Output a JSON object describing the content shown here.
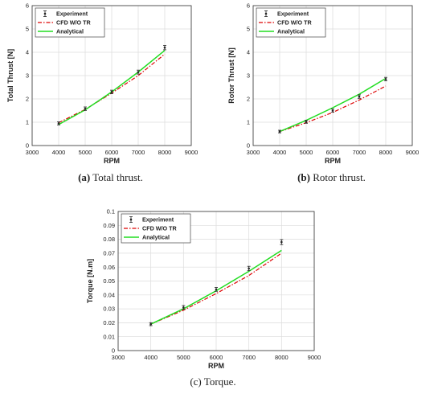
{
  "colors": {
    "experiment": "#222222",
    "cfd": "#dd0000",
    "analytical": "#22dd22",
    "grid": "#dcdcdc"
  },
  "chart_data": [
    {
      "type": "line",
      "caption_tag": "(a)",
      "caption_text": " Total thrust.",
      "xlabel": "RPM",
      "ylabel": "Total Thrust [N]",
      "xlim": [
        3000,
        9000
      ],
      "ylim": [
        0,
        6
      ],
      "xticks": [
        "3000",
        "4000",
        "5000",
        "6000",
        "7000",
        "8000",
        "9000"
      ],
      "yticks": [
        "0",
        "1",
        "2",
        "3",
        "4",
        "5",
        "6"
      ],
      "grid": true,
      "legend": "top-left",
      "series": [
        {
          "name": "Experiment",
          "style": "errorbar",
          "x": [
            4000,
            5000,
            6000,
            7000,
            8000
          ],
          "values": [
            0.95,
            1.58,
            2.3,
            3.15,
            4.2
          ],
          "err": [
            0.03,
            0.04,
            0.04,
            0.05,
            0.06
          ]
        },
        {
          "name": "CFD W/O TR",
          "style": "dashdot",
          "x": [
            4000,
            5000,
            6000,
            7000,
            8000
          ],
          "values": [
            0.98,
            1.55,
            2.25,
            3.0,
            3.92
          ]
        },
        {
          "name": "Analytical",
          "style": "solid",
          "x": [
            4000,
            5000,
            6000,
            7000,
            8000
          ],
          "values": [
            0.9,
            1.53,
            2.3,
            3.15,
            4.08
          ]
        }
      ]
    },
    {
      "type": "line",
      "caption_tag": "(b)",
      "caption_text": " Rotor thrust.",
      "xlabel": "RPM",
      "ylabel": "Rotor Thrust [N]",
      "xlim": [
        3000,
        9000
      ],
      "ylim": [
        0,
        6
      ],
      "xticks": [
        "3000",
        "4000",
        "5000",
        "6000",
        "7000",
        "8000",
        "9000"
      ],
      "yticks": [
        "0",
        "1",
        "2",
        "3",
        "4",
        "5",
        "6"
      ],
      "grid": true,
      "legend": "top-left",
      "series": [
        {
          "name": "Experiment",
          "style": "errorbar",
          "x": [
            4000,
            5000,
            6000,
            7000,
            8000
          ],
          "values": [
            0.6,
            1.02,
            1.5,
            2.1,
            2.85
          ],
          "err": [
            0.02,
            0.03,
            0.03,
            0.04,
            0.04
          ]
        },
        {
          "name": "CFD W/O TR",
          "style": "dashdot",
          "x": [
            4000,
            5000,
            6000,
            7000,
            8000
          ],
          "values": [
            0.6,
            0.98,
            1.42,
            1.95,
            2.55
          ]
        },
        {
          "name": "Analytical",
          "style": "solid",
          "x": [
            4000,
            5000,
            6000,
            7000,
            8000
          ],
          "values": [
            0.6,
            1.08,
            1.62,
            2.2,
            2.88
          ]
        }
      ]
    },
    {
      "type": "line",
      "caption_tag": "(c)",
      "caption_text": " Torque.",
      "xlabel": "RPM",
      "ylabel": "Torque [N.m]",
      "xlim": [
        3000,
        9000
      ],
      "ylim": [
        0,
        0.1
      ],
      "xticks": [
        "3000",
        "4000",
        "5000",
        "6000",
        "7000",
        "8000",
        "9000"
      ],
      "yticks": [
        "0",
        "0.01",
        "0.02",
        "0.03",
        "0.04",
        "0.05",
        "0.06",
        "0.07",
        "0.08",
        "0.09",
        "0.1"
      ],
      "grid": true,
      "legend": "top-left",
      "series": [
        {
          "name": "Experiment",
          "style": "errorbar",
          "x": [
            4000,
            5000,
            6000,
            7000,
            8000
          ],
          "values": [
            0.019,
            0.031,
            0.044,
            0.059,
            0.078
          ],
          "err": [
            0.0005,
            0.0008,
            0.0008,
            0.001,
            0.0012
          ]
        },
        {
          "name": "CFD W/O TR",
          "style": "dashdot",
          "x": [
            4000,
            5000,
            6000,
            7000,
            8000
          ],
          "values": [
            0.019,
            0.029,
            0.041,
            0.054,
            0.07
          ]
        },
        {
          "name": "Analytical",
          "style": "solid",
          "x": [
            4000,
            5000,
            6000,
            7000,
            8000
          ],
          "values": [
            0.019,
            0.03,
            0.043,
            0.057,
            0.072
          ]
        }
      ]
    }
  ]
}
